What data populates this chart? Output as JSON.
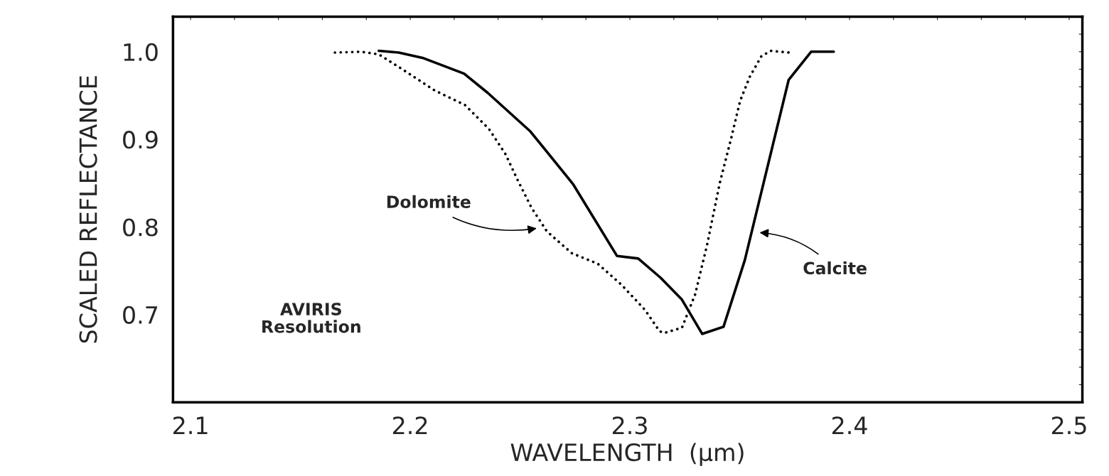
{
  "chart_data": {
    "type": "line",
    "xlabel": "WAVELENGTH  (µm)",
    "ylabel": "SCALED REFLECTANCE",
    "xlim": [
      2.092,
      2.506
    ],
    "ylim": [
      0.6,
      1.04
    ],
    "xticks": [
      2.1,
      {
        "value": 2.12,
        "label": null
      },
      {
        "value": 2.14,
        "label": null
      },
      {
        "value": 2.16,
        "label": null
      },
      {
        "value": 2.18,
        "label": null
      },
      2.2,
      {
        "value": 2.22,
        "label": null
      },
      {
        "value": 2.24,
        "label": null
      },
      {
        "value": 2.26,
        "label": null
      },
      {
        "value": 2.28,
        "label": null
      },
      2.3,
      {
        "value": 2.32,
        "label": null
      },
      {
        "value": 2.34,
        "label": null
      },
      {
        "value": 2.36,
        "label": null
      },
      {
        "value": 2.38,
        "label": null
      },
      2.4,
      {
        "value": 2.42,
        "label": null
      },
      {
        "value": 2.44,
        "label": null
      },
      {
        "value": 2.46,
        "label": null
      },
      {
        "value": 2.48,
        "label": null
      },
      2.5
    ],
    "yticks": [
      {
        "value": 0.62,
        "label": null
      },
      {
        "value": 0.64,
        "label": null
      },
      {
        "value": 0.66,
        "label": null
      },
      {
        "value": 0.68,
        "label": null
      },
      0.7,
      {
        "value": 0.72,
        "label": null
      },
      {
        "value": 0.74,
        "label": null
      },
      {
        "value": 0.76,
        "label": null
      },
      {
        "value": 0.78,
        "label": null
      },
      0.8,
      {
        "value": 0.82,
        "label": null
      },
      {
        "value": 0.84,
        "label": null
      },
      {
        "value": 0.86,
        "label": null
      },
      {
        "value": 0.88,
        "label": null
      },
      0.9,
      {
        "value": 0.92,
        "label": null
      },
      {
        "value": 0.94,
        "label": null
      },
      {
        "value": 0.96,
        "label": null
      },
      {
        "value": 0.98,
        "label": null
      },
      {
        "value": 1.0,
        "label": "1.0"
      },
      {
        "value": 1.02,
        "label": null
      }
    ],
    "grid": false,
    "legend": false,
    "marker": "none",
    "series": [
      {
        "color": "#000000",
        "line_style": "dotted",
        "x": [
          2.1657,
          2.1776,
          2.1857,
          2.197,
          2.211,
          2.225,
          2.2358,
          2.2434,
          2.2488,
          2.2552,
          2.2622,
          2.2736,
          2.2854,
          2.2962,
          2.307,
          2.3135,
          2.3156,
          2.3237,
          2.3297,
          2.3351,
          2.341,
          2.3459,
          2.3502,
          2.3545,
          2.3599,
          2.3642,
          2.3728
        ],
        "values": [
          0.999,
          1.0,
          0.997,
          0.979,
          0.956,
          0.939,
          0.912,
          0.883,
          0.854,
          0.822,
          0.795,
          0.77,
          0.758,
          0.734,
          0.705,
          0.681,
          0.679,
          0.685,
          0.723,
          0.779,
          0.851,
          0.899,
          0.944,
          0.971,
          0.995,
          1.001,
          0.999
        ]
      },
      {
        "color": "#000000",
        "line_style": "solid",
        "x": [
          2.1857,
          2.1948,
          2.2056,
          2.2245,
          2.2353,
          2.2547,
          2.2741,
          2.2941,
          2.3038,
          2.314,
          2.3237,
          2.3329,
          2.3426,
          2.3523,
          2.3723,
          2.3825,
          2.3928
        ],
        "values": [
          1.001,
          0.999,
          0.993,
          0.975,
          0.953,
          0.909,
          0.849,
          0.767,
          0.764,
          0.742,
          0.717,
          0.678,
          0.686,
          0.762,
          0.968,
          1.0,
          1.0
        ]
      }
    ],
    "annotations": [
      "Dolomite",
      "Calcite",
      "AVIRIS\nResolution"
    ]
  }
}
